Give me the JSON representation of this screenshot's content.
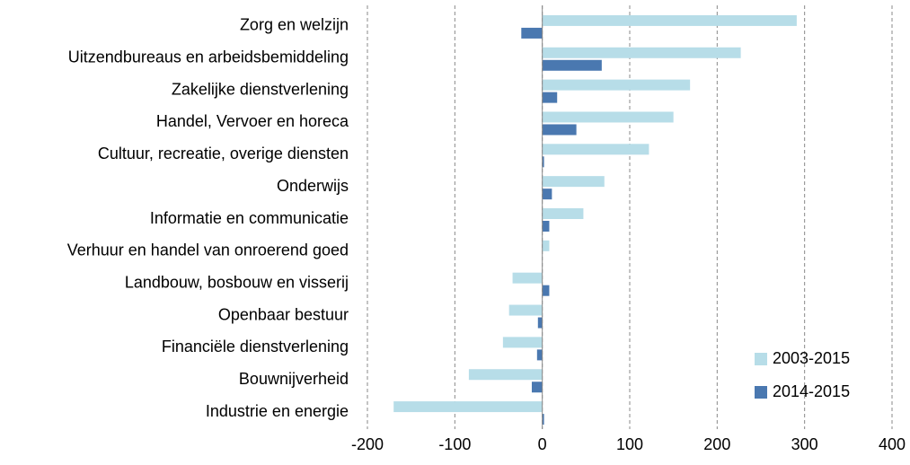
{
  "chart_data": {
    "type": "hbar",
    "categories": [
      "Zorg en welzijn",
      "Uitzendbureaus en arbeidsbemiddeling",
      "Zakelijke dienstverlening",
      "Handel, Vervoer en horeca",
      "Cultuur, recreatie, overige diensten",
      "Onderwijs",
      "Informatie en communicatie",
      "Verhuur en handel van onroerend goed",
      "Landbouw, bosbouw en visserij",
      "Openbaar bestuur",
      "Financiële dienstverlening",
      "Bouwnijverheid",
      "Industrie en energie"
    ],
    "series": [
      {
        "name": "2003-2015",
        "color": "#b7dde8",
        "values": [
          291,
          227,
          169,
          150,
          122,
          71,
          47,
          8,
          -34,
          -38,
          -45,
          -84,
          -170
        ]
      },
      {
        "name": "2014-2015",
        "color": "#4a78b0",
        "values": [
          -24,
          68,
          17,
          39,
          2,
          11,
          8,
          0,
          8,
          -5,
          -6,
          -12,
          2
        ]
      }
    ],
    "xlim": [
      -200,
      400
    ],
    "xticks": [
      -200,
      -100,
      0,
      100,
      200,
      300,
      400
    ],
    "grid": true,
    "legend": "lower right"
  }
}
